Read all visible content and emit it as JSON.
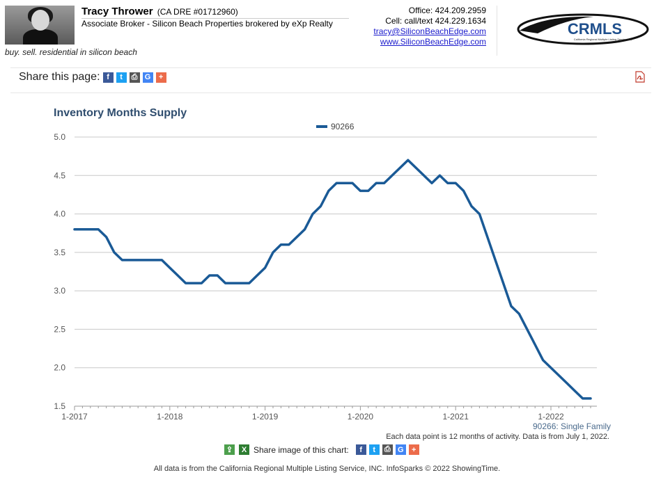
{
  "header": {
    "name": "Tracy Thrower",
    "license": "(CA DRE #01712960)",
    "role": "Associate Broker - Silicon Beach Properties brokered by eXp Realty",
    "tagline": "buy. sell. residential in silicon beach",
    "office": "Office: 424.209.2959",
    "cell": "Cell: call/text 424.229.1634",
    "email": "tracy@SiliconBeachEdge.com",
    "website": "www.SiliconBeachEdge.com",
    "logo_text": "CRMLS",
    "logo_subtext": "California Regional Multiple Listing Service, Inc."
  },
  "share_page": {
    "label": "Share this page:"
  },
  "icons": {
    "facebook": "facebook-icon",
    "twitter": "twitter-icon",
    "print": "print-icon",
    "google": "google-icon",
    "plus": "add-icon",
    "pdf": "pdf-icon",
    "share": "share-icon",
    "excel": "excel-icon"
  },
  "colors": {
    "series": "#1a5a96",
    "title": "#2f4d6e",
    "grid": "#c8c8c8"
  },
  "chart_data": {
    "type": "line",
    "title": "Inventory Months Supply",
    "xlabel": "",
    "ylabel": "",
    "ylim": [
      1.5,
      5.0
    ],
    "yticks": [
      "5.0",
      "4.5",
      "4.0",
      "3.5",
      "3.0",
      "2.5",
      "2.0",
      "1.5"
    ],
    "xticks": [
      "1-2017",
      "1-2018",
      "1-2019",
      "1-2020",
      "1-2021",
      "1-2022"
    ],
    "grid": true,
    "legend_position": "top",
    "series": [
      {
        "name": "90266",
        "x": [
          "2017-01",
          "2017-02",
          "2017-03",
          "2017-04",
          "2017-05",
          "2017-06",
          "2017-07",
          "2017-08",
          "2017-09",
          "2017-10",
          "2017-11",
          "2017-12",
          "2018-01",
          "2018-02",
          "2018-03",
          "2018-04",
          "2018-05",
          "2018-06",
          "2018-07",
          "2018-08",
          "2018-09",
          "2018-10",
          "2018-11",
          "2018-12",
          "2019-01",
          "2019-02",
          "2019-03",
          "2019-04",
          "2019-05",
          "2019-06",
          "2019-07",
          "2019-08",
          "2019-09",
          "2019-10",
          "2019-11",
          "2019-12",
          "2020-01",
          "2020-02",
          "2020-03",
          "2020-04",
          "2020-05",
          "2020-06",
          "2020-07",
          "2020-08",
          "2020-09",
          "2020-10",
          "2020-11",
          "2020-12",
          "2021-01",
          "2021-02",
          "2021-03",
          "2021-04",
          "2021-05",
          "2021-06",
          "2021-07",
          "2021-08",
          "2021-09",
          "2021-10",
          "2021-11",
          "2021-12",
          "2022-01",
          "2022-02",
          "2022-03",
          "2022-04",
          "2022-05",
          "2022-06"
        ],
        "values": [
          3.8,
          3.8,
          3.8,
          3.8,
          3.7,
          3.5,
          3.4,
          3.4,
          3.4,
          3.4,
          3.4,
          3.4,
          3.3,
          3.2,
          3.1,
          3.1,
          3.1,
          3.2,
          3.2,
          3.1,
          3.1,
          3.1,
          3.1,
          3.2,
          3.3,
          3.5,
          3.6,
          3.6,
          3.7,
          3.8,
          4.0,
          4.1,
          4.3,
          4.4,
          4.4,
          4.4,
          4.3,
          4.3,
          4.4,
          4.4,
          4.5,
          4.6,
          4.7,
          4.6,
          4.5,
          4.4,
          4.5,
          4.4,
          4.4,
          4.3,
          4.1,
          4.0,
          3.7,
          3.4,
          3.1,
          2.8,
          2.7,
          2.5,
          2.3,
          2.1,
          2.0,
          1.9,
          1.8,
          1.7,
          1.6,
          1.6
        ]
      }
    ],
    "series_label": "90266: Single Family",
    "note": "Each data point is 12 months of activity. Data is from July 1, 2022."
  },
  "share_chart": {
    "label": "Share image of this chart:"
  },
  "footer": "All data is from the California Regional Multiple Listing Service, INC. InfoSparks © 2022 ShowingTime."
}
